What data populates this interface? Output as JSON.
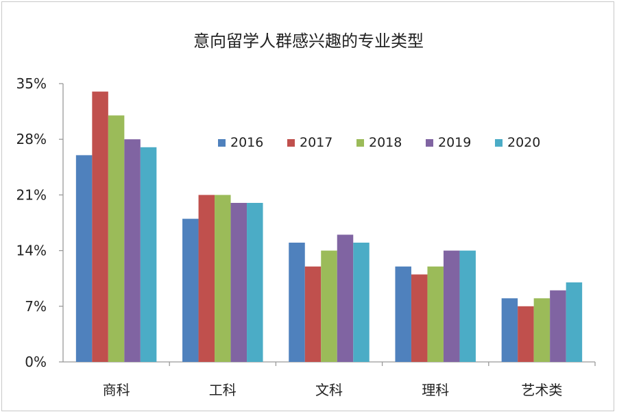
{
  "chart_data": {
    "type": "bar",
    "title": "意向留学人群感兴趣的专业类型",
    "xlabel": "",
    "ylabel": "",
    "categories": [
      "商科",
      "工科",
      "文科",
      "理科",
      "艺术类"
    ],
    "y_ticks": [
      "0%",
      "7%",
      "14%",
      "21%",
      "28%",
      "35%"
    ],
    "ylim": [
      0,
      35
    ],
    "grid": false,
    "legend_position": "top-right",
    "series": [
      {
        "name": "2016",
        "color": "#4F81BD",
        "values": [
          26,
          18,
          15,
          12,
          8
        ]
      },
      {
        "name": "2017",
        "color": "#C0504D",
        "values": [
          34,
          21,
          12,
          11,
          7
        ]
      },
      {
        "name": "2018",
        "color": "#9BBB59",
        "values": [
          31,
          21,
          14,
          12,
          8
        ]
      },
      {
        "name": "2019",
        "color": "#8064A2",
        "values": [
          28,
          20,
          16,
          14,
          9
        ]
      },
      {
        "name": "2020",
        "color": "#4BACC6",
        "values": [
          27,
          20,
          15,
          14,
          10
        ]
      }
    ]
  }
}
